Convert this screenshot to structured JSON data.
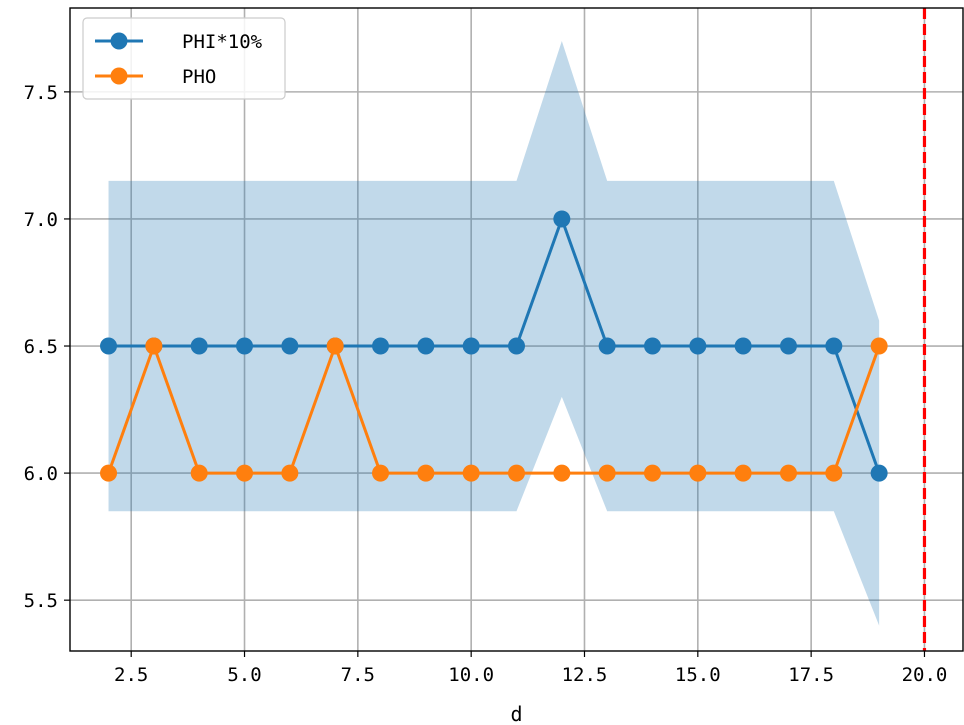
{
  "chart_data": {
    "type": "line",
    "title": "",
    "xlabel": "d",
    "ylabel": "",
    "xlim": [
      1.15,
      20.85
    ],
    "ylim": [
      5.3,
      7.83
    ],
    "xticks": [
      "2.5",
      "5.0",
      "7.5",
      "10.0",
      "12.5",
      "15.0",
      "17.5",
      "20.0"
    ],
    "yticks": [
      "5.5",
      "6.0",
      "6.5",
      "7.0",
      "7.5"
    ],
    "grid": true,
    "legend_position": "top-left",
    "x": [
      2,
      3,
      4,
      5,
      6,
      7,
      8,
      9,
      10,
      11,
      12,
      13,
      14,
      15,
      16,
      17,
      18,
      19
    ],
    "series": [
      {
        "name": "PHI*10%",
        "color": "#1f77b4",
        "values": [
          6.5,
          6.5,
          6.5,
          6.5,
          6.5,
          6.5,
          6.5,
          6.5,
          6.5,
          6.5,
          7.0,
          6.5,
          6.5,
          6.5,
          6.5,
          6.5,
          6.5,
          6.0
        ]
      },
      {
        "name": "PHO",
        "color": "#ff7f0e",
        "values": [
          6.0,
          6.5,
          6.0,
          6.0,
          6.0,
          6.5,
          6.0,
          6.0,
          6.0,
          6.0,
          6.0,
          6.0,
          6.0,
          6.0,
          6.0,
          6.0,
          6.0,
          6.5
        ]
      }
    ],
    "band": {
      "color": "#1f77b4",
      "lower": [
        5.85,
        5.85,
        5.85,
        5.85,
        5.85,
        5.85,
        5.85,
        5.85,
        5.85,
        5.85,
        6.3,
        5.85,
        5.85,
        5.85,
        5.85,
        5.85,
        5.85,
        5.4
      ],
      "upper": [
        7.15,
        7.15,
        7.15,
        7.15,
        7.15,
        7.15,
        7.15,
        7.15,
        7.15,
        7.15,
        7.7,
        7.15,
        7.15,
        7.15,
        7.15,
        7.15,
        7.15,
        6.6
      ]
    },
    "vline": {
      "x": 20,
      "color": "#ff0000",
      "style": "dashed"
    }
  }
}
